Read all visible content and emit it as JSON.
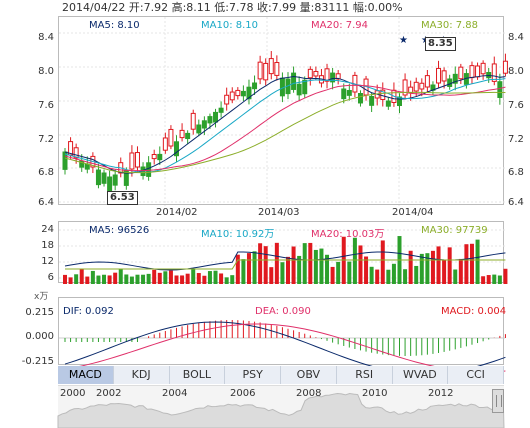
{
  "header": {
    "text": "2014/04/22 开:7.92 高:8.11 低:7.78 收:7.99 量:83111 幅:0.00%"
  },
  "kline": {
    "indicators": [
      {
        "label": "MA5: 8.10",
        "color": "#0b2a6b"
      },
      {
        "label": "MA10: 8.10",
        "color": "#19a8c6"
      },
      {
        "label": "MA20: 7.94",
        "color": "#e0306a"
      },
      {
        "label": "MA30: 7.88",
        "color": "#8cae2a"
      }
    ],
    "y_ticks": [
      "8.4",
      "8.0",
      "7.6",
      "7.2",
      "6.8",
      "6.4"
    ],
    "x_ticks": [
      "2014/02",
      "2014/03",
      "2014/04"
    ],
    "low_mark": "6.53",
    "high_mark": "8.35",
    "colors": {
      "up": "#e0191f",
      "down": "#2ca02c",
      "ma5": "#0b2a6b",
      "ma10": "#19a8c6",
      "ma20": "#e0306a",
      "ma30": "#8cae2a"
    }
  },
  "volume": {
    "indicators": [
      {
        "label": "MA5: 96526",
        "color": "#0b2a6b"
      },
      {
        "label": "MA10: 10.92万",
        "color": "#19a8c6"
      },
      {
        "label": "MA20: 10.03万",
        "color": "#e0306a"
      },
      {
        "label": "MA30: 97739",
        "color": "#8cae2a"
      }
    ],
    "y_ticks": [
      "24",
      "18",
      "12",
      "6"
    ],
    "unit": "x万"
  },
  "macd": {
    "indicators": [
      {
        "label": "DIF: 0.092",
        "color": "#0b2a6b"
      },
      {
        "label": "DEA: 0.090",
        "color": "#e0306a"
      },
      {
        "label": "MACD: 0.004",
        "color": "#e0191f"
      }
    ],
    "y_ticks": [
      "0.215",
      "0.000",
      "-0.215"
    ]
  },
  "tabs": [
    "MACD",
    "KDJ",
    "BOLL",
    "PSY",
    "OBV",
    "RSI",
    "WVAD",
    "CCI"
  ],
  "active_tab": "MACD",
  "timeline": {
    "years": [
      "2000",
      "2002",
      "2004",
      "2006",
      "2008",
      "2010",
      "2012"
    ]
  }
}
